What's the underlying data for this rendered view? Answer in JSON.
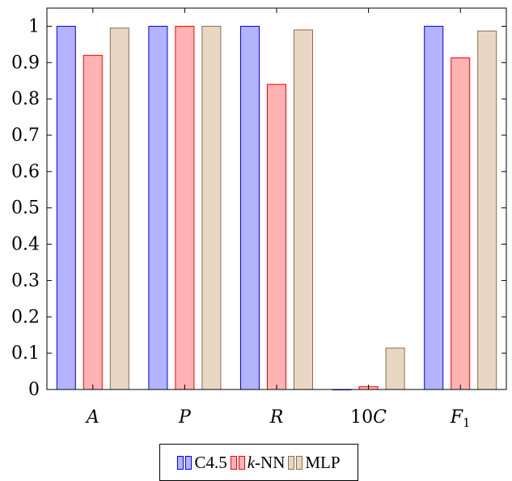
{
  "chart_data": {
    "type": "bar",
    "categories": [
      "A",
      "P",
      "R",
      "10C",
      "F1"
    ],
    "category_display": [
      {
        "main": "A",
        "sub": ""
      },
      {
        "main": "P",
        "sub": ""
      },
      {
        "main": "R",
        "sub": ""
      },
      {
        "main": "10C",
        "sub": ""
      },
      {
        "main": "F",
        "sub": "1"
      }
    ],
    "series": [
      {
        "name": "C4.5",
        "values": [
          1.0,
          1.0,
          1.0,
          0.0,
          1.0
        ],
        "fill": "#b3b3ff",
        "stroke": "#0000ff"
      },
      {
        "name": "k-NN",
        "values": [
          0.92,
          1.0,
          0.84,
          0.008,
          0.913
        ],
        "fill": "#ffb3b3",
        "stroke": "#ff0000"
      },
      {
        "name": "MLP",
        "values": [
          0.995,
          1.0,
          0.99,
          0.114,
          0.987
        ],
        "fill": "#e8d8c3",
        "stroke": "#8c6d4f"
      }
    ],
    "ylim": [
      0,
      1.05
    ],
    "yticks": [
      0,
      0.1,
      0.2,
      0.3,
      0.4,
      0.5,
      0.6,
      0.7,
      0.8,
      0.9,
      1
    ],
    "ytick_labels": [
      "0",
      "0.1",
      "0.2",
      "0.3",
      "0.4",
      "0.5",
      "0.6",
      "0.7",
      "0.8",
      "0.9",
      "1"
    ],
    "grid": false,
    "legend_position": "bottom-center",
    "title": "",
    "xlabel": "",
    "ylabel": ""
  },
  "legend": {
    "items": [
      {
        "label_pre": "C4.5",
        "label_it": "",
        "label_post": ""
      },
      {
        "label_pre": "",
        "label_it": "k",
        "label_post": "-NN"
      },
      {
        "label_pre": "MLP",
        "label_it": "",
        "label_post": ""
      }
    ]
  }
}
